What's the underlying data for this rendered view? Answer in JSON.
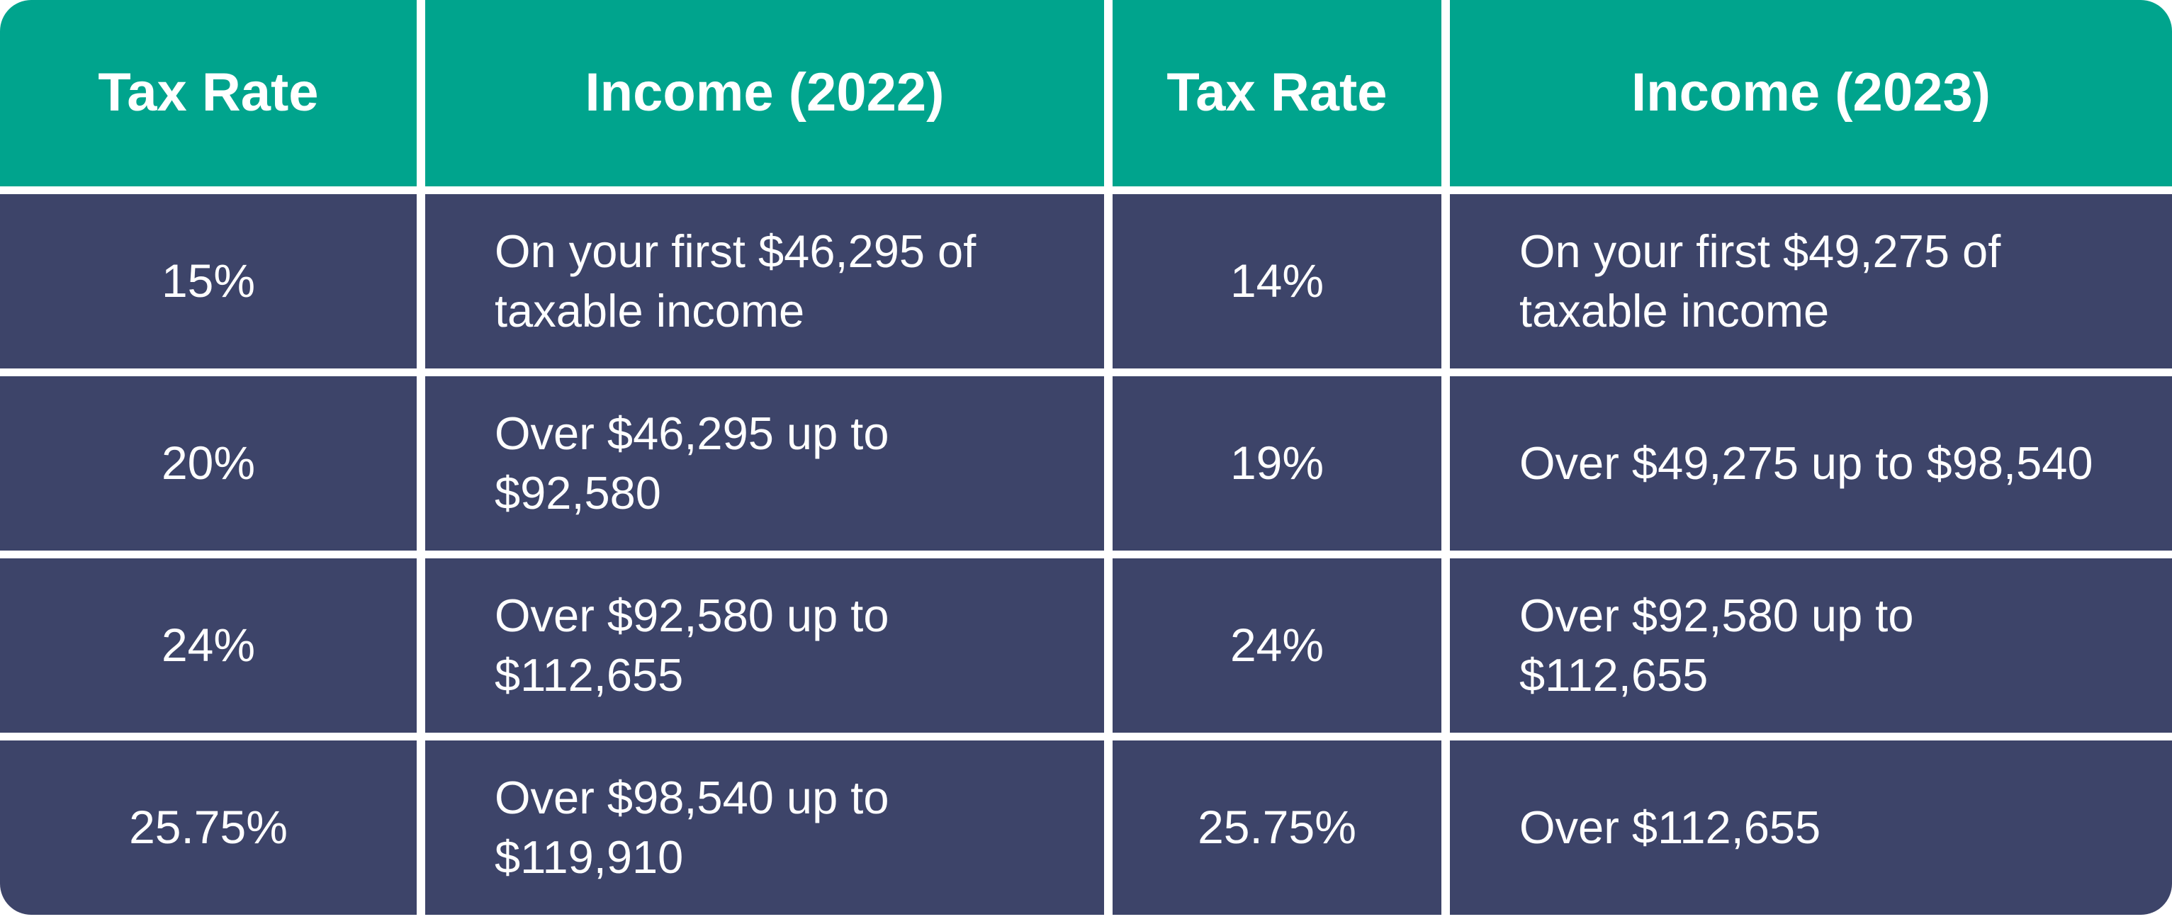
{
  "colors": {
    "header_bg": "#00A48D",
    "cell_bg": "#3D4469",
    "text": "#FFFFFF",
    "page_bg": "#FFFFFF"
  },
  "table": {
    "headers": [
      "Tax Rate",
      "Income (2022)",
      "Tax Rate",
      "Income (2023)"
    ],
    "rows": [
      [
        "15%",
        "On your first $46,295 of\ntaxable income",
        "14%",
        "On your first $49,275 of\ntaxable income"
      ],
      [
        "20%",
        "Over $46,295 up to\n$92,580",
        "19%",
        "Over $49,275 up to $98,540"
      ],
      [
        "24%",
        "Over $92,580 up to\n$112,655",
        "24%",
        "Over $92,580 up to\n$112,655"
      ],
      [
        "25.75%",
        "Over $98,540 up to\n$119,910",
        "25.75%",
        "Over $112,655"
      ]
    ]
  },
  "chart_data": {
    "type": "table",
    "title": "Tax rate comparison 2022 vs 2023",
    "columns": [
      "Tax Rate",
      "Income (2022)",
      "Tax Rate",
      "Income (2023)"
    ],
    "rows": [
      [
        "15%",
        "On your first $46,295 of taxable income",
        "14%",
        "On your first $49,275 of taxable income"
      ],
      [
        "20%",
        "Over $46,295 up to $92,580",
        "19%",
        "Over $49,275 up to $98,540"
      ],
      [
        "24%",
        "Over $92,580 up to $112,655",
        "24%",
        "Over $92,580 up to $112,655"
      ],
      [
        "25.75%",
        "Over $98,540 up to $119,910",
        "25.75%",
        "Over $112,655"
      ]
    ],
    "tax_brackets_2022": [
      {
        "rate_percent": 15,
        "from": 0,
        "to": 46295
      },
      {
        "rate_percent": 20,
        "from": 46295,
        "to": 92580
      },
      {
        "rate_percent": 24,
        "from": 92580,
        "to": 112655
      },
      {
        "rate_percent": 25.75,
        "from": 98540,
        "to": 119910
      }
    ],
    "tax_brackets_2023": [
      {
        "rate_percent": 14,
        "from": 0,
        "to": 49275
      },
      {
        "rate_percent": 19,
        "from": 49275,
        "to": 98540
      },
      {
        "rate_percent": 24,
        "from": 92580,
        "to": 112655
      },
      {
        "rate_percent": 25.75,
        "from": 112655,
        "to": null
      }
    ]
  }
}
